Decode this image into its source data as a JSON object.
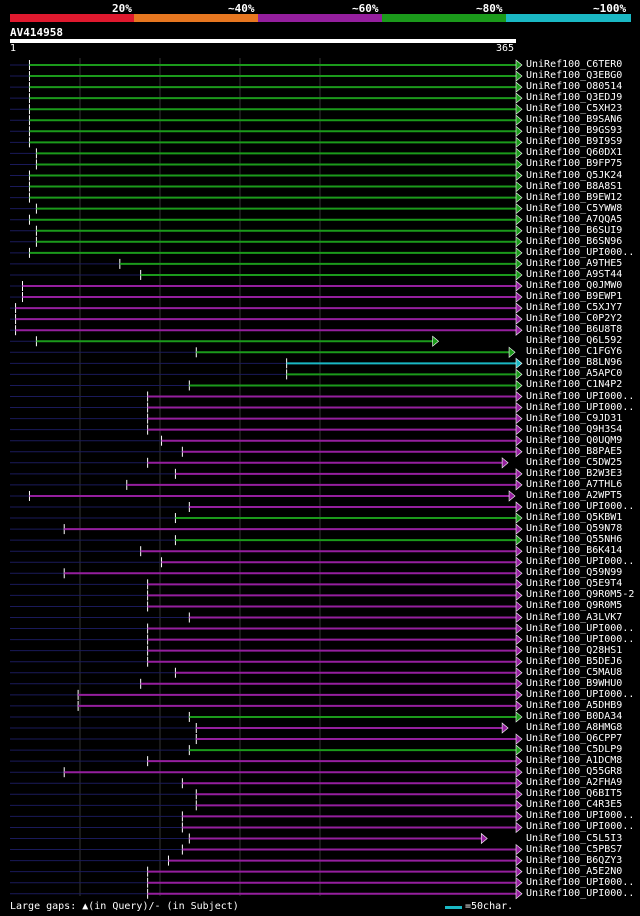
{
  "header": {
    "identity_labels": [
      "20%",
      "~40%",
      "~60%",
      "~80%",
      "~100%"
    ],
    "colors": {
      "c20": "#e0192e",
      "c40": "#e77720",
      "c60": "#951f9e",
      "c80": "#1b9a1b",
      "c100": "#1ab8c4"
    }
  },
  "query": {
    "name": "AV414958",
    "start": "1",
    "end": "365"
  },
  "hits": [
    {
      "name": "UniRef100_C6TER0",
      "s": 15,
      "e": 365,
      "c": "g"
    },
    {
      "name": "UniRef100_Q3EBG0",
      "s": 15,
      "e": 365,
      "c": "g"
    },
    {
      "name": "UniRef100_O80514",
      "s": 15,
      "e": 365,
      "c": "g"
    },
    {
      "name": "UniRef100_Q3EDJ9",
      "s": 15,
      "e": 365,
      "c": "g"
    },
    {
      "name": "UniRef100_C5XH23",
      "s": 15,
      "e": 365,
      "c": "g"
    },
    {
      "name": "UniRef100_B9SAN6",
      "s": 15,
      "e": 365,
      "c": "g"
    },
    {
      "name": "UniRef100_B9GS93",
      "s": 15,
      "e": 365,
      "c": "g"
    },
    {
      "name": "UniRef100_B9I9S9",
      "s": 15,
      "e": 365,
      "c": "g"
    },
    {
      "name": "UniRef100_Q60DX1",
      "s": 20,
      "e": 365,
      "c": "g"
    },
    {
      "name": "UniRef100_B9FP75",
      "s": 20,
      "e": 365,
      "c": "g"
    },
    {
      "name": "UniRef100_Q5JK24",
      "s": 15,
      "e": 365,
      "c": "g"
    },
    {
      "name": "UniRef100_B8A8S1",
      "s": 15,
      "e": 365,
      "c": "g"
    },
    {
      "name": "UniRef100_B9EW12",
      "s": 15,
      "e": 365,
      "c": "g"
    },
    {
      "name": "UniRef100_C5YWW8",
      "s": 20,
      "e": 365,
      "c": "g"
    },
    {
      "name": "UniRef100_A7QQA5",
      "s": 15,
      "e": 365,
      "c": "g"
    },
    {
      "name": "UniRef100_B6SUI9",
      "s": 20,
      "e": 365,
      "c": "g"
    },
    {
      "name": "UniRef100_B6SN96",
      "s": 20,
      "e": 365,
      "c": "g"
    },
    {
      "name": "UniRef100_UPI000..",
      "s": 15,
      "e": 365,
      "c": "g"
    },
    {
      "name": "UniRef100_A9THE5",
      "s": 80,
      "e": 365,
      "c": "g"
    },
    {
      "name": "UniRef100_A9ST44",
      "s": 95,
      "e": 365,
      "c": "g"
    },
    {
      "name": "UniRef100_Q0JMW0",
      "s": 10,
      "e": 365,
      "c": "p"
    },
    {
      "name": "UniRef100_B9EWP1",
      "s": 10,
      "e": 365,
      "c": "p"
    },
    {
      "name": "UniRef100_C5XJY7",
      "s": 5,
      "e": 365,
      "c": "p"
    },
    {
      "name": "UniRef100_C0P2Y2",
      "s": 5,
      "e": 365,
      "c": "p"
    },
    {
      "name": "UniRef100_B6U8T8",
      "s": 5,
      "e": 365,
      "c": "p"
    },
    {
      "name": "UniRef100_Q6L592",
      "s": 20,
      "e": 305,
      "c": "g"
    },
    {
      "name": "UniRef100_C1FGY6",
      "s": 135,
      "e": 360,
      "c": "g"
    },
    {
      "name": "UniRef100_B8LN96",
      "s": 200,
      "e": 365,
      "c": "t"
    },
    {
      "name": "UniRef100_A5APC0",
      "s": 200,
      "e": 365,
      "c": "g"
    },
    {
      "name": "UniRef100_C1N4P2",
      "s": 130,
      "e": 365,
      "c": "g"
    },
    {
      "name": "UniRef100_UPI000..",
      "s": 100,
      "e": 365,
      "c": "p"
    },
    {
      "name": "UniRef100_UPI000..",
      "s": 100,
      "e": 365,
      "c": "p"
    },
    {
      "name": "UniRef100_C9JD31",
      "s": 100,
      "e": 365,
      "c": "p"
    },
    {
      "name": "UniRef100_Q9H3S4",
      "s": 100,
      "e": 365,
      "c": "p"
    },
    {
      "name": "UniRef100_Q0UQM9",
      "s": 110,
      "e": 365,
      "c": "p"
    },
    {
      "name": "UniRef100_B8PAE5",
      "s": 125,
      "e": 365,
      "c": "p"
    },
    {
      "name": "UniRef100_C5DW25",
      "s": 100,
      "e": 355,
      "c": "p"
    },
    {
      "name": "UniRef100_B2W3E3",
      "s": 120,
      "e": 365,
      "c": "p"
    },
    {
      "name": "UniRef100_A7THL6",
      "s": 85,
      "e": 365,
      "c": "p"
    },
    {
      "name": "UniRef100_A2WPT5",
      "s": 15,
      "e": 360,
      "c": "p"
    },
    {
      "name": "UniRef100_UPI000..",
      "s": 130,
      "e": 365,
      "c": "p"
    },
    {
      "name": "UniRef100_Q5KBW1",
      "s": 120,
      "e": 365,
      "c": "g"
    },
    {
      "name": "UniRef100_Q59N78",
      "s": 40,
      "e": 365,
      "c": "p"
    },
    {
      "name": "UniRef100_Q55NH6",
      "s": 120,
      "e": 365,
      "c": "g"
    },
    {
      "name": "UniRef100_B6K414",
      "s": 95,
      "e": 365,
      "c": "p"
    },
    {
      "name": "UniRef100_UPI000..",
      "s": 110,
      "e": 365,
      "c": "p"
    },
    {
      "name": "UniRef100_Q59N99",
      "s": 40,
      "e": 365,
      "c": "p"
    },
    {
      "name": "UniRef100_Q5E9T4",
      "s": 100,
      "e": 365,
      "c": "p"
    },
    {
      "name": "UniRef100_Q9R0M5-2",
      "s": 100,
      "e": 365,
      "c": "p"
    },
    {
      "name": "UniRef100_Q9R0M5",
      "s": 100,
      "e": 365,
      "c": "p"
    },
    {
      "name": "UniRef100_A3LVK7",
      "s": 130,
      "e": 365,
      "c": "p"
    },
    {
      "name": "UniRef100_UPI000..",
      "s": 100,
      "e": 365,
      "c": "p"
    },
    {
      "name": "UniRef100_UPI000..",
      "s": 100,
      "e": 365,
      "c": "p"
    },
    {
      "name": "UniRef100_Q28HS1",
      "s": 100,
      "e": 365,
      "c": "p"
    },
    {
      "name": "UniRef100_B5DEJ6",
      "s": 100,
      "e": 365,
      "c": "p"
    },
    {
      "name": "UniRef100_C5MAU8",
      "s": 120,
      "e": 365,
      "c": "p"
    },
    {
      "name": "UniRef100_B9WHU0",
      "s": 95,
      "e": 365,
      "c": "p"
    },
    {
      "name": "UniRef100_UPI000..",
      "s": 50,
      "e": 365,
      "c": "p"
    },
    {
      "name": "UniRef100_A5DHB9",
      "s": 50,
      "e": 365,
      "c": "p"
    },
    {
      "name": "UniRef100_B0DA34",
      "s": 130,
      "e": 365,
      "c": "g"
    },
    {
      "name": "UniRef100_A8HMG8",
      "s": 135,
      "e": 355,
      "c": "p"
    },
    {
      "name": "UniRef100_Q6CPP7",
      "s": 135,
      "e": 365,
      "c": "p"
    },
    {
      "name": "UniRef100_C5DLP9",
      "s": 130,
      "e": 365,
      "c": "g"
    },
    {
      "name": "UniRef100_A1DCM8",
      "s": 100,
      "e": 365,
      "c": "p"
    },
    {
      "name": "UniRef100_Q55GR8",
      "s": 40,
      "e": 365,
      "c": "p"
    },
    {
      "name": "UniRef100_A2FHA9",
      "s": 125,
      "e": 365,
      "c": "p"
    },
    {
      "name": "UniRef100_Q6BIT5",
      "s": 135,
      "e": 365,
      "c": "p"
    },
    {
      "name": "UniRef100_C4R3E5",
      "s": 135,
      "e": 365,
      "c": "p"
    },
    {
      "name": "UniRef100_UPI000..",
      "s": 125,
      "e": 365,
      "c": "p"
    },
    {
      "name": "UniRef100_UPI000..",
      "s": 125,
      "e": 365,
      "c": "p"
    },
    {
      "name": "UniRef100_C5L5I3",
      "s": 130,
      "e": 340,
      "c": "p"
    },
    {
      "name": "UniRef100_C5PBS7",
      "s": 125,
      "e": 365,
      "c": "p"
    },
    {
      "name": "UniRef100_B6QZY3",
      "s": 115,
      "e": 365,
      "c": "p"
    },
    {
      "name": "UniRef100_A5E2N0",
      "s": 100,
      "e": 365,
      "c": "p"
    },
    {
      "name": "UniRef100_UPI000..",
      "s": 100,
      "e": 365,
      "c": "p"
    },
    {
      "name": "UniRef100_UPI000..",
      "s": 100,
      "e": 365,
      "c": "p"
    }
  ],
  "footer": {
    "legend_left": "Large gaps: ▲(in Query)/- (in Subject)",
    "legend_right": "=50char."
  }
}
